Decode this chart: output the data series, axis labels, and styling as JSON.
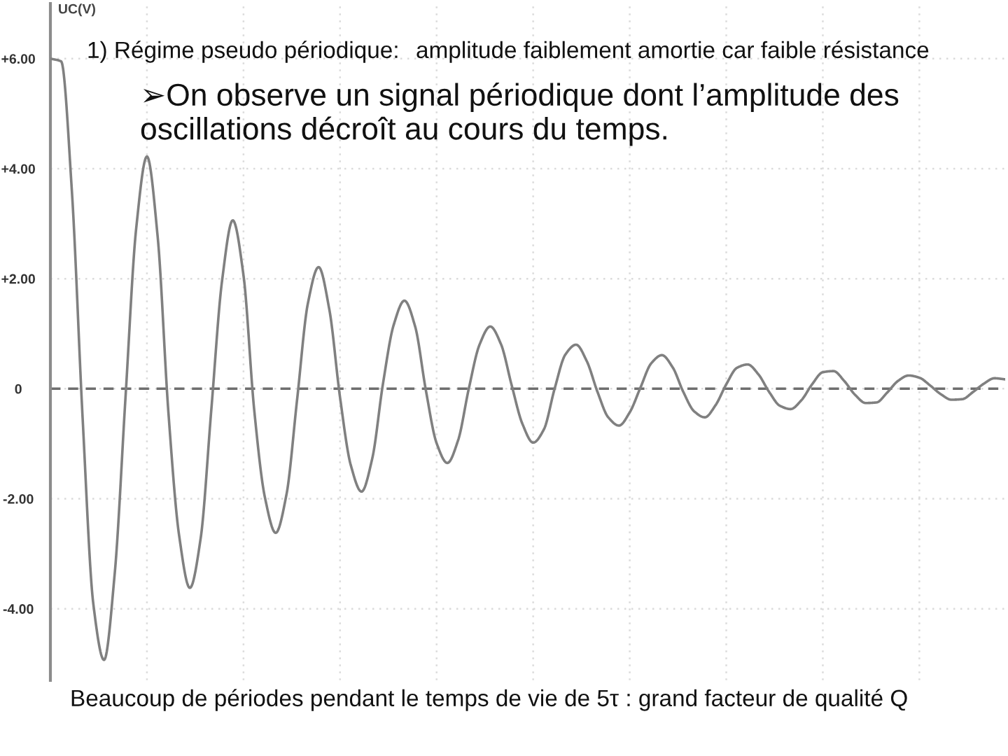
{
  "chart_data": {
    "type": "line",
    "title": "1) Régime pseudo périodique:",
    "subtitle": "➢On observe un signal périodique dont l’amplitude des oscillations décroît au cours du temps.",
    "ylabel": "UC(V)",
    "annotations": [
      "amplitude faiblement amortie car faible résistance",
      "Beaucoup de périodes pendant le temps de vie de 5τ : grand facteur de qualité Q"
    ],
    "categories": [
      null,
      null,
      null,
      null,
      null,
      null,
      null,
      null,
      null,
      null,
      null,
      null,
      null,
      null,
      null,
      null,
      null,
      null,
      null,
      null,
      null,
      null,
      null,
      null,
      null,
      null,
      null,
      null,
      null,
      null,
      null,
      null,
      null,
      null,
      null,
      null,
      null,
      null,
      null,
      null,
      null,
      null,
      null,
      null,
      null,
      null,
      null,
      null,
      null,
      null,
      null,
      null,
      null,
      null,
      null,
      null,
      null,
      null,
      null,
      null,
      null,
      null,
      null,
      null,
      null,
      null,
      null,
      null,
      null,
      null,
      null,
      null,
      null,
      null,
      null,
      null,
      null,
      null,
      null,
      null,
      null,
      null,
      null,
      null,
      null,
      null,
      null,
      null,
      null,
      null
    ],
    "series": [
      {
        "color": "#808080",
        "values": [
          6.0,
          5.95,
          3.6,
          -0.52,
          -3.91,
          -4.93,
          -3.35,
          -0.16,
          2.92,
          4.22,
          2.76,
          -0.43,
          -2.67,
          -3.62,
          -2.73,
          -0.38,
          1.96,
          3.06,
          2.06,
          -0.39,
          -1.98,
          -2.62,
          -1.93,
          -0.19,
          1.55,
          2.21,
          1.44,
          -0.16,
          -1.39,
          -1.87,
          -1.27,
          0.09,
          1.16,
          1.6,
          1.13,
          -0.03,
          -0.99,
          -1.35,
          -0.94,
          0.0,
          0.8,
          1.13,
          0.81,
          0.06,
          -0.64,
          -0.98,
          -0.74,
          0.0,
          0.62,
          0.8,
          0.5,
          -0.06,
          -0.52,
          -0.67,
          -0.43,
          0.02,
          0.46,
          0.61,
          0.39,
          -0.06,
          -0.41,
          -0.52,
          -0.3,
          0.08,
          0.38,
          0.44,
          0.26,
          -0.06,
          -0.31,
          -0.37,
          -0.21,
          0.08,
          0.3,
          0.32,
          0.14,
          -0.11,
          -0.26,
          -0.25,
          -0.07,
          0.14,
          0.24,
          0.2,
          0.06,
          -0.1,
          -0.2,
          -0.19,
          -0.06,
          0.09,
          0.19,
          0.17
        ]
      }
    ],
    "ylim": [
      -5.3,
      7.0
    ],
    "yticks": [
      {
        "value": -4,
        "label": "-4.00"
      },
      {
        "value": -2,
        "label": "-2.00"
      },
      0,
      {
        "value": 2,
        "label": "+2.00"
      },
      {
        "value": 4,
        "label": "+4.00"
      },
      {
        "value": 6,
        "label": "+6.00"
      }
    ],
    "tick_labels": "y",
    "grid": true,
    "ref_lines": [
      {
        "axis": "y",
        "value": 0,
        "color": "#6e6e6e",
        "line_style": "dashed"
      }
    ]
  }
}
